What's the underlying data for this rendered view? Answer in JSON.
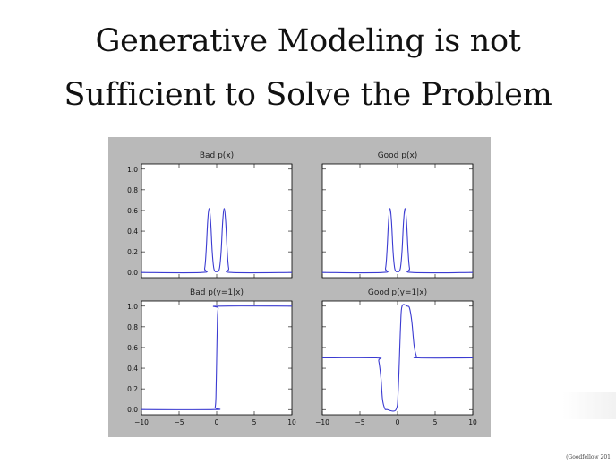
{
  "slide": {
    "title_line1": "Generative Modeling is not",
    "title_line2": "Sufficient to Solve the Problem",
    "credit": "(Goodfellow 201"
  },
  "colors": {
    "line": "#3b3bd1",
    "figure_bg": "#b9b9b9",
    "panel_bg": "#ffffff"
  },
  "chart_data": [
    {
      "type": "line",
      "title": "Bad p(x)",
      "xlim": [
        -10,
        10
      ],
      "ylim": [
        -0.05,
        1.05
      ],
      "yticks": [
        0.0,
        0.2,
        0.4,
        0.6,
        0.8,
        1.0
      ],
      "xticks": [
        -10,
        -5,
        0,
        5,
        10
      ],
      "show_xticks": false,
      "show_yticks": true,
      "series": [
        {
          "x": [
            -10,
            -2.0,
            -1.6,
            -1.4,
            -1.2,
            -1.0,
            -0.8,
            -0.6,
            -0.4,
            -0.2,
            0,
            0.2,
            0.4,
            0.6,
            0.8,
            1.0,
            1.2,
            1.4,
            1.6,
            2.0,
            10
          ],
          "y": [
            0,
            0,
            0.04,
            0.21,
            0.49,
            0.62,
            0.49,
            0.21,
            0.05,
            0.01,
            0.01,
            0.01,
            0.05,
            0.21,
            0.49,
            0.62,
            0.49,
            0.21,
            0.04,
            0,
            0
          ]
        }
      ]
    },
    {
      "type": "line",
      "title": "Good p(x)",
      "xlim": [
        -10,
        10
      ],
      "ylim": [
        -0.05,
        1.05
      ],
      "yticks": [
        0.0,
        0.2,
        0.4,
        0.6,
        0.8,
        1.0
      ],
      "xticks": [
        -10,
        -5,
        0,
        5,
        10
      ],
      "show_xticks": false,
      "show_yticks": false,
      "series": [
        {
          "x": [
            -10,
            -2.0,
            -1.6,
            -1.4,
            -1.2,
            -1.0,
            -0.8,
            -0.6,
            -0.4,
            -0.2,
            0,
            0.2,
            0.4,
            0.6,
            0.8,
            1.0,
            1.2,
            1.4,
            1.6,
            2.0,
            10
          ],
          "y": [
            0,
            0,
            0.04,
            0.21,
            0.49,
            0.62,
            0.49,
            0.21,
            0.05,
            0.01,
            0.01,
            0.01,
            0.05,
            0.21,
            0.49,
            0.62,
            0.49,
            0.21,
            0.04,
            0,
            0
          ]
        }
      ]
    },
    {
      "type": "line",
      "title": "Bad p(y=1|x)",
      "xlim": [
        -10,
        10
      ],
      "ylim": [
        -0.05,
        1.05
      ],
      "yticks": [
        0.0,
        0.2,
        0.4,
        0.6,
        0.8,
        1.0
      ],
      "xticks": [
        -10,
        -5,
        0,
        5,
        10
      ],
      "show_xticks": true,
      "show_yticks": true,
      "series": [
        {
          "x": [
            -10,
            -0.3,
            -0.2,
            -0.1,
            0,
            0.1,
            0.2,
            0.3,
            10
          ],
          "y": [
            0,
            0,
            0.02,
            0.12,
            0.5,
            0.88,
            0.98,
            1,
            1
          ]
        }
      ]
    },
    {
      "type": "line",
      "title": "Good p(y=1|x)",
      "xlim": [
        -10,
        10
      ],
      "ylim": [
        -0.05,
        1.05
      ],
      "yticks": [
        0.0,
        0.2,
        0.4,
        0.6,
        0.8,
        1.0
      ],
      "xticks": [
        -10,
        -5,
        0,
        5,
        10
      ],
      "show_xticks": true,
      "show_yticks": false,
      "series": [
        {
          "x": [
            -10,
            -2.8,
            -2.5,
            -2.2,
            -2.0,
            -1.7,
            -1.4,
            -0.2,
            0.1,
            0.4,
            0.6,
            1.3,
            1.6,
            1.9,
            2.2,
            2.5,
            2.8,
            10
          ],
          "y": [
            0.5,
            0.5,
            0.47,
            0.3,
            0.1,
            0.01,
            0,
            0,
            0.2,
            0.8,
            1,
            1,
            0.98,
            0.85,
            0.62,
            0.52,
            0.5,
            0.5
          ]
        }
      ]
    }
  ]
}
